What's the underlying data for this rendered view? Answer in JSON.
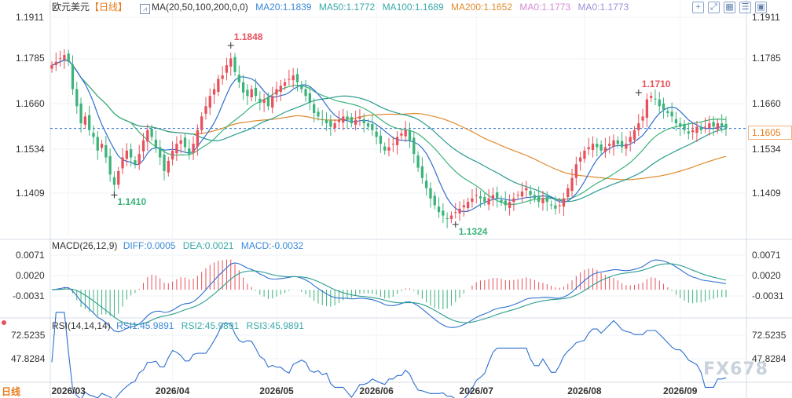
{
  "header": {
    "symbol": "欧元美元",
    "period": "【日线】",
    "ma_title": "MA(20,50,100,200,0,0)",
    "ma20": "MA20:1.1839",
    "ma50": "MA50:1.1772",
    "ma100": "MA100:1.1689",
    "ma200": "MA200:1.1652",
    "ma0a": "MA0:1.1773",
    "ma0b": "MA0:1.1773"
  },
  "macd_header": {
    "title": "MACD(26,12,9)",
    "diff": "DIFF:0.0005",
    "dea": "DEA:0.0021",
    "macd": "MACD:-0.0032"
  },
  "rsi_header": {
    "title": "RSI(14,14,14)",
    "rsi1": "RSI1:45.9891",
    "rsi2": "RSI2:45.9891",
    "rsi3": "RSI3:45.9891"
  },
  "footer": {
    "period_button": "日线"
  },
  "watermark": "FX678",
  "colors": {
    "up": "#e8505b",
    "down": "#3cb37a",
    "ma20": "#2f6fd0",
    "ma50": "#3cb37a",
    "ma100": "#2a9d8f",
    "ma200": "#e08a2e",
    "last_price": "#e87a1a"
  },
  "chart_data": [
    {
      "type": "candlestick",
      "title": "欧元美元【日线】",
      "y_ticks": [
        "1.1911",
        "1.1785",
        "1.1660",
        "1.1534",
        "1.1409"
      ],
      "ylim": [
        1.128,
        1.1935
      ],
      "x_ticks": [
        "2026/03",
        "2026/04",
        "2026/05",
        "2026/06",
        "2026/07",
        "2026/08",
        "2026/09"
      ],
      "x_tick_index": [
        4,
        29,
        54,
        78,
        102,
        128,
        151
      ],
      "last_price": "1.1605",
      "annotations": [
        {
          "text": "1.1848",
          "index": 43,
          "value": 1.1848,
          "kind": "high"
        },
        {
          "text": "1.1410",
          "index": 15,
          "value": 1.141,
          "kind": "low"
        },
        {
          "text": "1.1324",
          "index": 97,
          "value": 1.1324,
          "kind": "low"
        },
        {
          "text": "1.1710",
          "index": 141,
          "value": 1.171,
          "kind": "high"
        }
      ],
      "close": [
        1.179,
        1.18,
        1.181,
        1.182,
        1.18,
        1.172,
        1.167,
        1.162,
        1.164,
        1.16,
        1.158,
        1.154,
        1.156,
        1.152,
        1.147,
        1.144,
        1.148,
        1.152,
        1.154,
        1.152,
        1.15,
        1.153,
        1.157,
        1.16,
        1.158,
        1.155,
        1.152,
        1.148,
        1.151,
        1.154,
        1.156,
        1.157,
        1.155,
        1.153,
        1.156,
        1.16,
        1.164,
        1.167,
        1.17,
        1.172,
        1.175,
        1.176,
        1.179,
        1.181,
        1.177,
        1.174,
        1.171,
        1.17,
        1.172,
        1.17,
        1.168,
        1.169,
        1.167,
        1.17,
        1.172,
        1.173,
        1.174,
        1.175,
        1.176,
        1.174,
        1.172,
        1.17,
        1.168,
        1.165,
        1.164,
        1.163,
        1.162,
        1.161,
        1.162,
        1.163,
        1.164,
        1.163,
        1.162,
        1.163,
        1.164,
        1.162,
        1.161,
        1.16,
        1.158,
        1.156,
        1.154,
        1.155,
        1.156,
        1.158,
        1.159,
        1.16,
        1.157,
        1.153,
        1.149,
        1.146,
        1.143,
        1.14,
        1.138,
        1.136,
        1.135,
        1.134,
        1.135,
        1.136,
        1.137,
        1.138,
        1.139,
        1.14,
        1.141,
        1.14,
        1.139,
        1.14,
        1.141,
        1.14,
        1.139,
        1.138,
        1.139,
        1.14,
        1.141,
        1.142,
        1.143,
        1.141,
        1.14,
        1.139,
        1.14,
        1.139,
        1.138,
        1.137,
        1.138,
        1.14,
        1.143,
        1.146,
        1.15,
        1.152,
        1.154,
        1.155,
        1.156,
        1.155,
        1.154,
        1.155,
        1.156,
        1.157,
        1.156,
        1.155,
        1.156,
        1.158,
        1.16,
        1.162,
        1.164,
        1.169,
        1.17,
        1.169,
        1.167,
        1.166,
        1.165,
        1.164,
        1.162,
        1.161,
        1.16,
        1.159,
        1.16,
        1.161,
        1.16,
        1.161,
        1.162,
        1.161,
        1.162,
        1.161,
        1.1605
      ],
      "moving_averages": [
        {
          "name": "MA20",
          "value": 1.1839
        },
        {
          "name": "MA50",
          "value": 1.1772
        },
        {
          "name": "MA100",
          "value": 1.1689
        },
        {
          "name": "MA200",
          "value": 1.1652
        },
        {
          "name": "MA0",
          "value": 1.1773
        },
        {
          "name": "MA0",
          "value": 1.1773
        }
      ]
    },
    {
      "type": "macd",
      "title": "MACD(26,12,9)",
      "y_ticks": [
        "0.0071",
        "0.0020",
        "-0.0031"
      ],
      "ylim": [
        -0.0055,
        0.0095
      ],
      "series": [
        {
          "name": "DIFF",
          "value": 0.0005
        },
        {
          "name": "DEA",
          "value": 0.0021
        },
        {
          "name": "MACD",
          "value": -0.0032
        }
      ]
    },
    {
      "type": "line",
      "title": "RSI(14,14,14)",
      "y_ticks": [
        "72.5235",
        "47.8284"
      ],
      "ylim": [
        30,
        85
      ],
      "series": [
        {
          "name": "RSI1",
          "value": 45.9891
        },
        {
          "name": "RSI2",
          "value": 45.9891
        },
        {
          "name": "RSI3",
          "value": 45.9891
        }
      ]
    }
  ]
}
